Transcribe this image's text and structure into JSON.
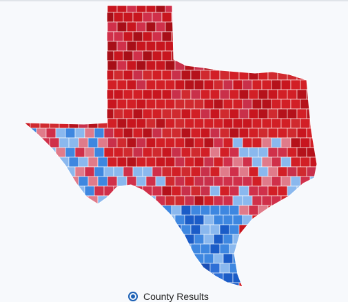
{
  "controls": {
    "radio_label": "County Results"
  }
}
